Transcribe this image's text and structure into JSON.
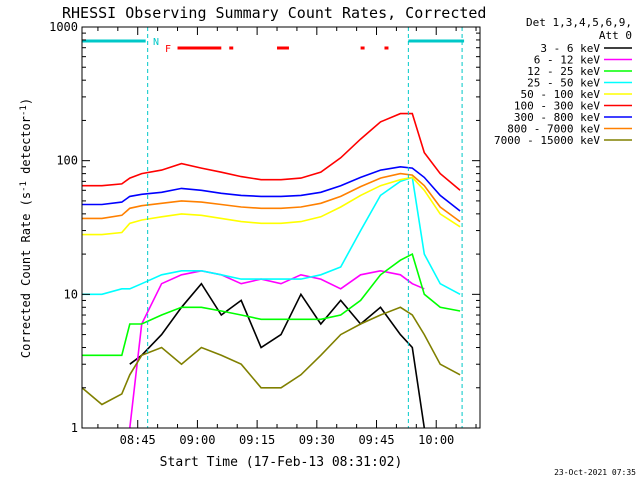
{
  "chart_data": {
    "type": "line",
    "title": "RHESSI Observing Summary Count Rates, Corrected",
    "xlabel": "Start Time (17-Feb-13 08:31:02)",
    "ylabel": "Corrected Count Rate (s-1 detector-1)",
    "ylabel_parts": {
      "pre": "Corrected Count Rate (s",
      "sup1": "-1",
      "mid": " detector",
      "sup2": "-1",
      "post": ")"
    },
    "y_scale": "log",
    "ylim": [
      1,
      1000
    ],
    "xlim_minutes": [
      0,
      100
    ],
    "x_ticks": [
      {
        "min": 14,
        "label": "08:45"
      },
      {
        "min": 29,
        "label": "09:00"
      },
      {
        "min": 44,
        "label": "09:15"
      },
      {
        "min": 59,
        "label": "09:30"
      },
      {
        "min": 74,
        "label": "09:45"
      },
      {
        "min": 89,
        "label": "10:00"
      }
    ],
    "y_ticks": [
      {
        "value": 1,
        "label": "1"
      },
      {
        "value": 10,
        "label": "10"
      },
      {
        "value": 100,
        "label": "100"
      },
      {
        "value": 1000,
        "label": "1000"
      }
    ],
    "legend_header": [
      "Det 1,3,4,5,6,9,",
      "Att 0"
    ],
    "legend_position": "right",
    "footer_timestamp": "23-Oct-2021 07:35",
    "flags": [
      {
        "label": "N",
        "color": "#00c8c8",
        "segments": [
          [
            0,
            16
          ],
          [
            82,
            96
          ]
        ]
      },
      {
        "label": "F",
        "color": "#ff0000",
        "segments": [
          [
            24,
            35
          ],
          [
            37,
            38
          ],
          [
            49,
            52
          ],
          [
            70,
            71
          ],
          [
            76,
            77
          ]
        ]
      }
    ],
    "vlines_minutes": [
      16.5,
      82,
      95.5
    ],
    "series": [
      {
        "name": "3 - 6 keV",
        "color": "#000000",
        "x": [
          12,
          15,
          20,
          25,
          30,
          35,
          40,
          45,
          50,
          55,
          60,
          65,
          70,
          75,
          80,
          83,
          86
        ],
        "y": [
          3.0,
          3.5,
          5.0,
          8.0,
          12,
          7.0,
          9.0,
          4.0,
          5.0,
          10,
          6.0,
          9.0,
          6.0,
          8.0,
          5.0,
          4.0,
          1.0
        ]
      },
      {
        "name": "6 - 12 keV",
        "color": "#ff00ff",
        "x": [
          12,
          15,
          20,
          25,
          30,
          35,
          40,
          45,
          50,
          55,
          60,
          65,
          70,
          75,
          80,
          83,
          86
        ],
        "y": [
          1.0,
          6.0,
          12,
          14,
          15,
          14,
          12,
          13,
          12,
          14,
          13,
          11,
          14,
          15,
          14,
          12,
          11
        ]
      },
      {
        "name": "12 - 25 keV",
        "color": "#00ff00",
        "x": [
          0,
          5,
          10,
          12,
          15,
          20,
          25,
          30,
          35,
          40,
          45,
          50,
          55,
          60,
          65,
          70,
          75,
          80,
          83,
          86,
          90,
          95
        ],
        "y": [
          3.5,
          3.5,
          3.5,
          6.0,
          6.0,
          7.0,
          8.0,
          8.0,
          7.5,
          7.0,
          6.5,
          6.5,
          6.5,
          6.5,
          7.0,
          9.0,
          14,
          18,
          20,
          10,
          8.0,
          7.5
        ]
      },
      {
        "name": "25 - 50 keV",
        "color": "#00ffff",
        "x": [
          0,
          5,
          10,
          12,
          15,
          20,
          25,
          30,
          35,
          40,
          45,
          50,
          55,
          60,
          65,
          70,
          75,
          80,
          83,
          86,
          90,
          95
        ],
        "y": [
          10,
          10,
          11,
          11,
          12,
          14,
          15,
          15,
          14,
          13,
          13,
          13,
          13,
          14,
          16,
          30,
          55,
          70,
          75,
          20,
          12,
          10
        ]
      },
      {
        "name": "50 - 100 keV",
        "color": "#ffff00",
        "x": [
          0,
          5,
          10,
          12,
          15,
          20,
          25,
          30,
          35,
          40,
          45,
          50,
          55,
          60,
          65,
          70,
          75,
          80,
          83,
          86,
          90,
          95
        ],
        "y": [
          28,
          28,
          29,
          34,
          36,
          38,
          40,
          39,
          37,
          35,
          34,
          34,
          35,
          38,
          45,
          55,
          65,
          72,
          75,
          60,
          40,
          32
        ]
      },
      {
        "name": "100 - 300 keV",
        "color": "#ff0000",
        "x": [
          0,
          5,
          10,
          12,
          15,
          20,
          25,
          30,
          35,
          40,
          45,
          50,
          55,
          60,
          65,
          70,
          75,
          80,
          83,
          86,
          90,
          95
        ],
        "y": [
          65,
          65,
          67,
          74,
          80,
          85,
          95,
          88,
          82,
          76,
          72,
          72,
          74,
          82,
          105,
          145,
          195,
          225,
          225,
          115,
          80,
          60
        ]
      },
      {
        "name": "300 - 800 keV",
        "color": "#0000ff",
        "x": [
          0,
          5,
          10,
          12,
          15,
          20,
          25,
          30,
          35,
          40,
          45,
          50,
          55,
          60,
          65,
          70,
          75,
          80,
          83,
          86,
          90,
          95
        ],
        "y": [
          47,
          47,
          49,
          54,
          56,
          58,
          62,
          60,
          57,
          55,
          54,
          54,
          55,
          58,
          65,
          75,
          85,
          90,
          88,
          75,
          55,
          42
        ]
      },
      {
        "name": "800 - 7000 keV",
        "color": "#ff8000",
        "x": [
          0,
          5,
          10,
          12,
          15,
          20,
          25,
          30,
          35,
          40,
          45,
          50,
          55,
          60,
          65,
          70,
          75,
          80,
          83,
          86,
          90,
          95
        ],
        "y": [
          37,
          37,
          39,
          44,
          46,
          48,
          50,
          49,
          47,
          45,
          44,
          44,
          45,
          48,
          54,
          64,
          74,
          80,
          78,
          65,
          45,
          35
        ]
      },
      {
        "name": "7000 - 15000 keV",
        "color": "#808000",
        "x": [
          0,
          5,
          10,
          12,
          15,
          20,
          25,
          30,
          35,
          40,
          45,
          50,
          55,
          60,
          65,
          70,
          75,
          80,
          83,
          86,
          90,
          95
        ],
        "y": [
          2.0,
          1.5,
          1.8,
          2.5,
          3.5,
          4.0,
          3.0,
          4.0,
          3.5,
          3.0,
          2.0,
          2.0,
          2.5,
          3.5,
          5.0,
          6.0,
          7.0,
          8.0,
          7.0,
          5.0,
          3.0,
          2.5
        ]
      }
    ]
  }
}
